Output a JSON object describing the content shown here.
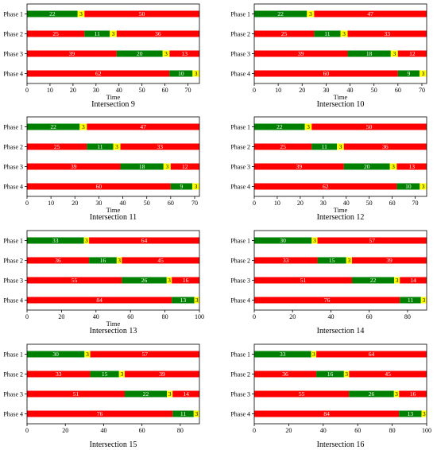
{
  "colors": {
    "green": "#008000",
    "yellow": "#ffff00",
    "red": "#ff0000"
  },
  "chart_data": [
    {
      "type": "bar",
      "title": "Intersection 9",
      "xlabel": "Time",
      "xlim": [
        0,
        75
      ],
      "xticks": [
        0,
        10,
        20,
        30,
        40,
        50,
        60,
        70
      ],
      "categories": [
        "Phase 1",
        "Phase 2",
        "Phase 3",
        "Phase 4"
      ],
      "rows": [
        [
          {
            "c": "green",
            "v": 22
          },
          {
            "c": "yellow",
            "v": 3
          },
          {
            "c": "red",
            "v": 50
          }
        ],
        [
          {
            "c": "red",
            "v": 25
          },
          {
            "c": "green",
            "v": 11
          },
          {
            "c": "yellow",
            "v": 3
          },
          {
            "c": "red",
            "v": 36
          }
        ],
        [
          {
            "c": "red",
            "v": 39
          },
          {
            "c": "green",
            "v": 20
          },
          {
            "c": "yellow",
            "v": 3
          },
          {
            "c": "red",
            "v": 13
          }
        ],
        [
          {
            "c": "red",
            "v": 62
          },
          {
            "c": "green",
            "v": 10
          },
          {
            "c": "yellow",
            "v": 3
          }
        ]
      ]
    },
    {
      "type": "bar",
      "title": "Intersection 10",
      "xlabel": "Time",
      "xlim": [
        0,
        72
      ],
      "xticks": [
        0,
        10,
        20,
        30,
        40,
        50,
        60,
        70
      ],
      "categories": [
        "Phase 1",
        "Phase 2",
        "Phase 3",
        "Phase 4"
      ],
      "rows": [
        [
          {
            "c": "green",
            "v": 22
          },
          {
            "c": "yellow",
            "v": 3
          },
          {
            "c": "red",
            "v": 47
          }
        ],
        [
          {
            "c": "red",
            "v": 25
          },
          {
            "c": "green",
            "v": 11
          },
          {
            "c": "yellow",
            "v": 3
          },
          {
            "c": "red",
            "v": 33
          }
        ],
        [
          {
            "c": "red",
            "v": 39
          },
          {
            "c": "green",
            "v": 18
          },
          {
            "c": "yellow",
            "v": 3
          },
          {
            "c": "red",
            "v": 12
          }
        ],
        [
          {
            "c": "red",
            "v": 60
          },
          {
            "c": "green",
            "v": 9
          },
          {
            "c": "yellow",
            "v": 3
          }
        ]
      ]
    },
    {
      "type": "bar",
      "title": "Intersection 11",
      "xlabel": "Time",
      "xlim": [
        0,
        72
      ],
      "xticks": [
        0,
        10,
        20,
        30,
        40,
        50,
        60,
        70
      ],
      "categories": [
        "Phase 1",
        "Phase 2",
        "Phase 3",
        "Phase 4"
      ],
      "rows": [
        [
          {
            "c": "green",
            "v": 22
          },
          {
            "c": "yellow",
            "v": 3
          },
          {
            "c": "red",
            "v": 47
          }
        ],
        [
          {
            "c": "red",
            "v": 25
          },
          {
            "c": "green",
            "v": 11
          },
          {
            "c": "yellow",
            "v": 3
          },
          {
            "c": "red",
            "v": 33
          }
        ],
        [
          {
            "c": "red",
            "v": 39
          },
          {
            "c": "green",
            "v": 18
          },
          {
            "c": "yellow",
            "v": 3
          },
          {
            "c": "red",
            "v": 12
          }
        ],
        [
          {
            "c": "red",
            "v": 60
          },
          {
            "c": "green",
            "v": 9
          },
          {
            "c": "yellow",
            "v": 3
          }
        ]
      ]
    },
    {
      "type": "bar",
      "title": "Intersection 12",
      "xlabel": "Time",
      "xlim": [
        0,
        75
      ],
      "xticks": [
        0,
        10,
        20,
        30,
        40,
        50,
        60,
        70
      ],
      "categories": [
        "Phase 1",
        "Phase 2",
        "Phase 3",
        "Phase 4"
      ],
      "rows": [
        [
          {
            "c": "green",
            "v": 22
          },
          {
            "c": "yellow",
            "v": 3
          },
          {
            "c": "red",
            "v": 50
          }
        ],
        [
          {
            "c": "red",
            "v": 25
          },
          {
            "c": "green",
            "v": 11
          },
          {
            "c": "yellow",
            "v": 3
          },
          {
            "c": "red",
            "v": 36
          }
        ],
        [
          {
            "c": "red",
            "v": 39
          },
          {
            "c": "green",
            "v": 20
          },
          {
            "c": "yellow",
            "v": 3
          },
          {
            "c": "red",
            "v": 13
          }
        ],
        [
          {
            "c": "red",
            "v": 62
          },
          {
            "c": "green",
            "v": 10
          },
          {
            "c": "yellow",
            "v": 3
          }
        ]
      ]
    },
    {
      "type": "bar",
      "title": "Intersection 13",
      "xlabel": "Time",
      "xlim": [
        0,
        100
      ],
      "xticks": [
        0,
        20,
        40,
        60,
        80,
        100
      ],
      "categories": [
        "Phase 1",
        "Phase 2",
        "Phase 3",
        "Phase 4"
      ],
      "rows": [
        [
          {
            "c": "green",
            "v": 33
          },
          {
            "c": "yellow",
            "v": 3
          },
          {
            "c": "red",
            "v": 64
          }
        ],
        [
          {
            "c": "red",
            "v": 36
          },
          {
            "c": "green",
            "v": 16
          },
          {
            "c": "yellow",
            "v": 3
          },
          {
            "c": "red",
            "v": 45
          }
        ],
        [
          {
            "c": "red",
            "v": 55
          },
          {
            "c": "green",
            "v": 26
          },
          {
            "c": "yellow",
            "v": 3
          },
          {
            "c": "red",
            "v": 16
          }
        ],
        [
          {
            "c": "red",
            "v": 84
          },
          {
            "c": "green",
            "v": 13
          },
          {
            "c": "yellow",
            "v": 3
          }
        ]
      ]
    },
    {
      "type": "bar",
      "title": "Intersection 14",
      "xlabel": "",
      "xlim": [
        0,
        90
      ],
      "xticks": [
        0,
        20,
        40,
        60,
        80
      ],
      "categories": [
        "Phase 1",
        "Phase 2",
        "Phase 3",
        "Phase 4"
      ],
      "rows": [
        [
          {
            "c": "green",
            "v": 30
          },
          {
            "c": "yellow",
            "v": 3
          },
          {
            "c": "red",
            "v": 57
          }
        ],
        [
          {
            "c": "red",
            "v": 33
          },
          {
            "c": "green",
            "v": 15
          },
          {
            "c": "yellow",
            "v": 3
          },
          {
            "c": "red",
            "v": 39
          }
        ],
        [
          {
            "c": "red",
            "v": 51
          },
          {
            "c": "green",
            "v": 22
          },
          {
            "c": "yellow",
            "v": 3
          },
          {
            "c": "red",
            "v": 14
          }
        ],
        [
          {
            "c": "red",
            "v": 76
          },
          {
            "c": "green",
            "v": 11
          },
          {
            "c": "yellow",
            "v": 3
          }
        ]
      ]
    },
    {
      "type": "bar",
      "title": "Intersection 15",
      "xlabel": "",
      "xlim": [
        0,
        90
      ],
      "xticks": [
        0,
        20,
        40,
        60,
        80
      ],
      "categories": [
        "Phase 1",
        "Phase 2",
        "Phase 3",
        "Phase 4"
      ],
      "rows": [
        [
          {
            "c": "green",
            "v": 30
          },
          {
            "c": "yellow",
            "v": 3
          },
          {
            "c": "red",
            "v": 57
          }
        ],
        [
          {
            "c": "red",
            "v": 33
          },
          {
            "c": "green",
            "v": 15
          },
          {
            "c": "yellow",
            "v": 3
          },
          {
            "c": "red",
            "v": 39
          }
        ],
        [
          {
            "c": "red",
            "v": 51
          },
          {
            "c": "green",
            "v": 22
          },
          {
            "c": "yellow",
            "v": 3
          },
          {
            "c": "red",
            "v": 14
          }
        ],
        [
          {
            "c": "red",
            "v": 76
          },
          {
            "c": "green",
            "v": 11
          },
          {
            "c": "yellow",
            "v": 3
          }
        ]
      ]
    },
    {
      "type": "bar",
      "title": "Intersection 16",
      "xlabel": "",
      "xlim": [
        0,
        100
      ],
      "xticks": [
        0,
        20,
        40,
        60,
        80,
        100
      ],
      "categories": [
        "Phase 1",
        "Phase 2",
        "Phase 3",
        "Phase 4"
      ],
      "rows": [
        [
          {
            "c": "green",
            "v": 33
          },
          {
            "c": "yellow",
            "v": 3
          },
          {
            "c": "red",
            "v": 64
          }
        ],
        [
          {
            "c": "red",
            "v": 36
          },
          {
            "c": "green",
            "v": 16
          },
          {
            "c": "yellow",
            "v": 3
          },
          {
            "c": "red",
            "v": 45
          }
        ],
        [
          {
            "c": "red",
            "v": 55
          },
          {
            "c": "green",
            "v": 26
          },
          {
            "c": "yellow",
            "v": 3
          },
          {
            "c": "red",
            "v": 16
          }
        ],
        [
          {
            "c": "red",
            "v": 84
          },
          {
            "c": "green",
            "v": 13
          },
          {
            "c": "yellow",
            "v": 3
          }
        ]
      ]
    }
  ]
}
